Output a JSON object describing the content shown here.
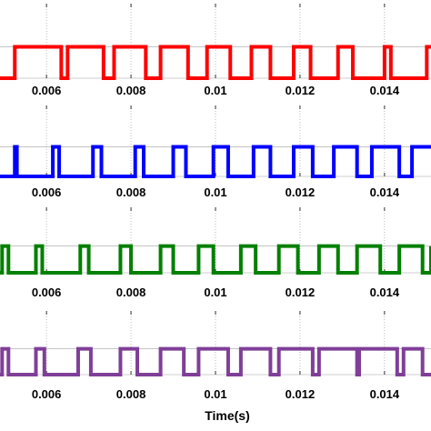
{
  "chart_data": {
    "type": "line",
    "xlabel": "Time(s)",
    "xlim": [
      0.0049,
      0.0151
    ],
    "ylim": [
      0,
      1
    ],
    "x_ticks": [
      0.006,
      0.008,
      0.01,
      0.012,
      0.014
    ],
    "x_tick_labels": [
      "0.006",
      "0.008",
      "0.01",
      "0.012",
      "0.014"
    ],
    "grid": "vertical dotted at ticks",
    "series": [
      {
        "color": "#ff0000",
        "edges": [
          0.00525,
          0.00635,
          0.0065,
          0.00735,
          0.0076,
          0.00835,
          0.0087,
          0.00935,
          0.0098,
          0.01035,
          0.01085,
          0.0113,
          0.01185,
          0.01225,
          0.0129,
          0.01325,
          0.014,
          0.01415,
          0.015
        ]
      },
      {
        "color": "#0000ff",
        "edges": [
          0.00525,
          0.0053,
          0.00615,
          0.0063,
          0.0071,
          0.0073,
          0.0081,
          0.0083,
          0.009,
          0.0093,
          0.00995,
          0.0103,
          0.0109,
          0.0113,
          0.01185,
          0.0123,
          0.0128,
          0.01335,
          0.0137,
          0.01435,
          0.01465
        ]
      },
      {
        "color": "#008000",
        "edges": [
          0.00495,
          0.0051,
          0.00575,
          0.0059,
          0.0068,
          0.007,
          0.00775,
          0.008,
          0.0087,
          0.009,
          0.0096,
          0.00995,
          0.0106,
          0.01095,
          0.0115,
          0.01195,
          0.01245,
          0.0129,
          0.01335,
          0.0139,
          0.01435,
          0.0149,
          0.0151
        ]
      },
      {
        "color": "#7f3f98",
        "edges": [
          0.00495,
          0.0051,
          0.00575,
          0.00595,
          0.00675,
          0.00705,
          0.00775,
          0.00815,
          0.0087,
          0.00925,
          0.0096,
          0.0103,
          0.0106,
          0.0113,
          0.0115,
          0.0123,
          0.01245,
          0.01335,
          0.0134,
          0.0143,
          0.01445,
          0.0149
        ]
      }
    ]
  }
}
